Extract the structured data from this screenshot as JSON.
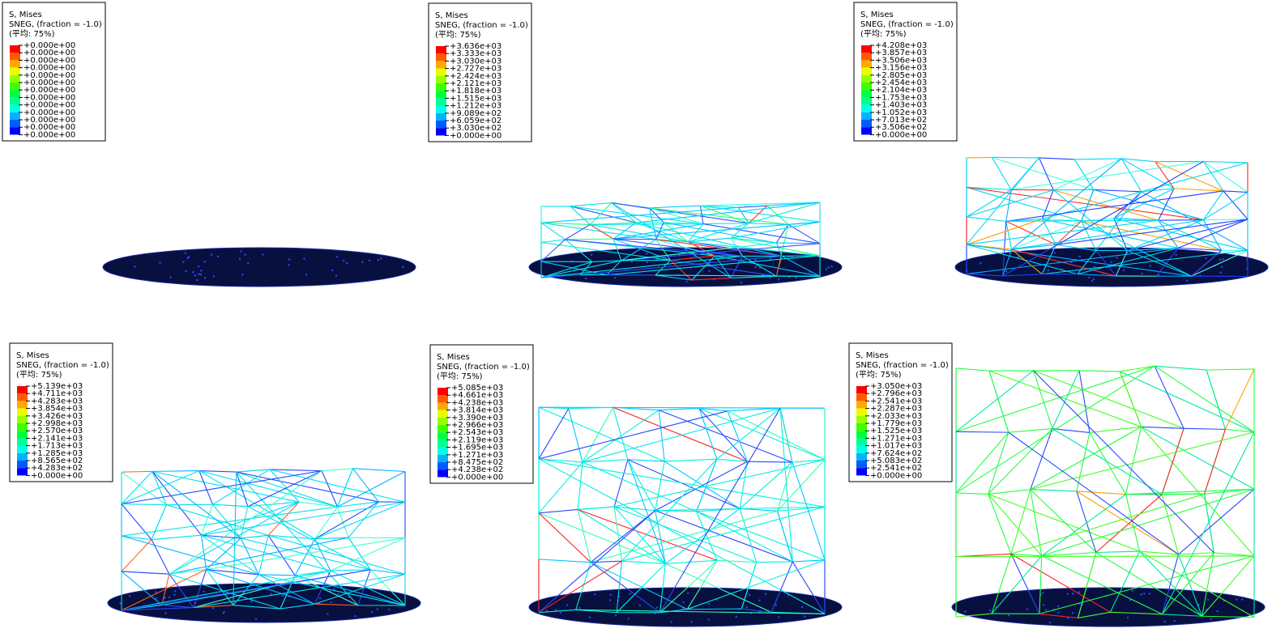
{
  "panels": [
    {
      "legend": {
        "title": "S, Mises",
        "subtitle": "SNEG, (fraction = -1.0)",
        "average": "(平均: 75%)",
        "labels": [
          "+0.000e+00",
          "+0.000e+00",
          "+0.000e+00",
          "+0.000e+00",
          "+0.000e+00",
          "+0.000e+00",
          "+0.000e+00",
          "+0.000e+00",
          "+0.000e+00",
          "+0.000e+00",
          "+0.000e+00",
          "+0.000e+00",
          "+0.000e+00"
        ]
      }
    },
    {
      "legend": {
        "title": "S, Mises",
        "subtitle": "SNEG, (fraction = -1.0)",
        "average": "(平均: 75%)",
        "labels": [
          "+3.636e+03",
          "+3.333e+03",
          "+3.030e+03",
          "+2.727e+03",
          "+2.424e+03",
          "+2.121e+03",
          "+1.818e+03",
          "+1.515e+03",
          "+1.212e+03",
          "+9.089e+02",
          "+6.059e+02",
          "+3.030e+02",
          "+0.000e+00"
        ]
      }
    },
    {
      "legend": {
        "title": "S, Mises",
        "subtitle": "SNEG, (fraction = -1.0)",
        "average": "(平均: 75%)",
        "labels": [
          "+4.208e+03",
          "+3.857e+03",
          "+3.506e+03",
          "+3.156e+03",
          "+2.805e+03",
          "+2.454e+03",
          "+2.104e+03",
          "+1.753e+03",
          "+1.403e+03",
          "+1.052e+03",
          "+7.013e+02",
          "+3.506e+02",
          "+0.000e+00"
        ]
      }
    },
    {
      "legend": {
        "title": "S, Mises",
        "subtitle": "SNEG, (fraction = -1.0)",
        "average": "(平均: 75%)",
        "labels": [
          "+5.139e+03",
          "+4.711e+03",
          "+4.283e+03",
          "+3.854e+03",
          "+3.426e+03",
          "+2.998e+03",
          "+2.570e+03",
          "+2.141e+03",
          "+1.713e+03",
          "+1.285e+03",
          "+8.565e+02",
          "+4.283e+02",
          "+0.000e+00"
        ]
      }
    },
    {
      "legend": {
        "title": "S, Mises",
        "subtitle": "SNEG, (fraction = -1.0)",
        "average": "(平均: 75%)",
        "labels": [
          "+5.085e+03",
          "+4.661e+03",
          "+4.238e+03",
          "+3.814e+03",
          "+3.390e+03",
          "+2.966e+03",
          "+2.543e+03",
          "+2.119e+03",
          "+1.695e+03",
          "+1.271e+03",
          "+8.475e+02",
          "+4.238e+02",
          "+0.000e+00"
        ]
      }
    },
    {
      "legend": {
        "title": "S, Mises",
        "subtitle": "SNEG, (fraction = -1.0)",
        "average": "(平均: 75%)",
        "labels": [
          "+3.050e+03",
          "+2.796e+03",
          "+2.541e+03",
          "+2.287e+03",
          "+2.033e+03",
          "+1.779e+03",
          "+1.525e+03",
          "+1.271e+03",
          "+1.017e+03",
          "+7.624e+02",
          "+5.083e+02",
          "+2.541e+02",
          "+0.000e+00"
        ]
      }
    }
  ]
}
